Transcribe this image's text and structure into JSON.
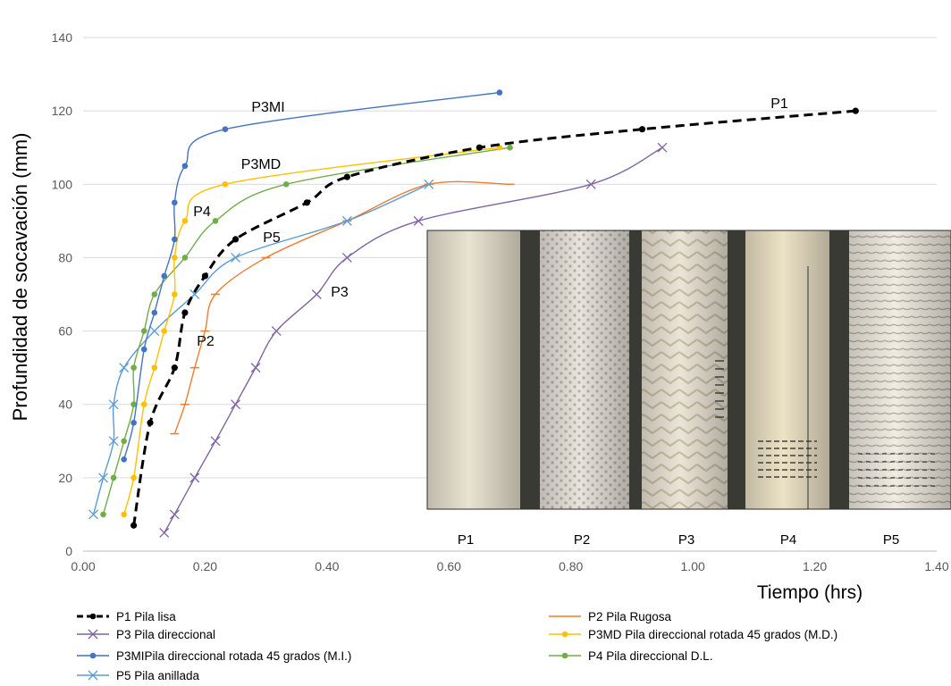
{
  "chart_data": {
    "type": "line",
    "title": "",
    "xlabel": "Tiempo (hrs)",
    "ylabel": "Profundidad de socavación (mm)",
    "xlim": [
      0,
      1.4
    ],
    "ylim": [
      0,
      140
    ],
    "x_ticks": [
      "0.00",
      "0.20",
      "0.40",
      "0.60",
      "0.80",
      "1.00",
      "1.20",
      "1.40"
    ],
    "y_ticks": [
      "0",
      "20",
      "40",
      "60",
      "80",
      "100",
      "120",
      "140"
    ],
    "grid": "horizontal",
    "legend_position": "bottom",
    "series": [
      {
        "key": "P1",
        "name": "P1 Pila lisa",
        "color": "#000000",
        "dash": "dashed",
        "marker": "dot",
        "label": "P1",
        "points": [
          [
            0.083,
            7
          ],
          [
            0.11,
            35
          ],
          [
            0.15,
            50
          ],
          [
            0.167,
            65
          ],
          [
            0.2,
            75
          ],
          [
            0.25,
            85
          ],
          [
            0.367,
            95
          ],
          [
            0.433,
            102
          ],
          [
            0.65,
            110
          ],
          [
            0.917,
            115
          ],
          [
            1.267,
            120
          ]
        ]
      },
      {
        "key": "P2",
        "name": "P2 Pila Rugosa",
        "color": "#ED7D31",
        "dash": "solid",
        "marker": "dash",
        "label": "P2",
        "points": [
          [
            0.15,
            32
          ],
          [
            0.167,
            40
          ],
          [
            0.183,
            50
          ],
          [
            0.2,
            60
          ],
          [
            0.217,
            70
          ],
          [
            0.3,
            80
          ],
          [
            0.433,
            90
          ],
          [
            0.567,
            100
          ],
          [
            0.7,
            100
          ]
        ]
      },
      {
        "key": "P3",
        "name": "P3 Pila direccional",
        "color": "#8064A2",
        "dash": "solid",
        "marker": "x",
        "label": "P3",
        "points": [
          [
            0.133,
            5
          ],
          [
            0.15,
            10
          ],
          [
            0.183,
            20
          ],
          [
            0.217,
            30
          ],
          [
            0.25,
            40
          ],
          [
            0.283,
            50
          ],
          [
            0.317,
            60
          ],
          [
            0.383,
            70
          ],
          [
            0.433,
            80
          ],
          [
            0.55,
            90
          ],
          [
            0.833,
            100
          ],
          [
            0.95,
            110
          ]
        ]
      },
      {
        "key": "P3MD",
        "name": "P3MD Pila direccional rotada 45 grados (M.D.)",
        "color": "#FFC000",
        "dash": "solid",
        "marker": "dot",
        "label": "P3MD",
        "points": [
          [
            0.067,
            10
          ],
          [
            0.083,
            20
          ],
          [
            0.1,
            40
          ],
          [
            0.117,
            50
          ],
          [
            0.133,
            60
          ],
          [
            0.15,
            70
          ],
          [
            0.15,
            80
          ],
          [
            0.167,
            90
          ],
          [
            0.233,
            100
          ],
          [
            0.683,
            110
          ]
        ]
      },
      {
        "key": "P3MI",
        "name": "P3MIPila direccional rotada 45 grados (M.I.)",
        "color": "#4472C4",
        "dash": "solid",
        "marker": "dot",
        "label": "P3MI",
        "points": [
          [
            0.067,
            25
          ],
          [
            0.083,
            35
          ],
          [
            0.1,
            55
          ],
          [
            0.117,
            65
          ],
          [
            0.133,
            75
          ],
          [
            0.15,
            85
          ],
          [
            0.15,
            95
          ],
          [
            0.167,
            105
          ],
          [
            0.233,
            115
          ],
          [
            0.683,
            125
          ]
        ]
      },
      {
        "key": "P4",
        "name": "P4 Pila direccional D.L.",
        "color": "#70AD47",
        "dash": "solid",
        "marker": "dot",
        "label": "P4",
        "points": [
          [
            0.033,
            10
          ],
          [
            0.05,
            20
          ],
          [
            0.067,
            30
          ],
          [
            0.083,
            40
          ],
          [
            0.083,
            50
          ],
          [
            0.1,
            60
          ],
          [
            0.117,
            70
          ],
          [
            0.167,
            80
          ],
          [
            0.217,
            90
          ],
          [
            0.333,
            100
          ],
          [
            0.7,
            110
          ]
        ]
      },
      {
        "key": "P5",
        "name": "P5 Pila anillada",
        "color": "#5B9BD5",
        "dash": "solid",
        "marker": "x",
        "label": "P5",
        "points": [
          [
            0.017,
            10
          ],
          [
            0.033,
            20
          ],
          [
            0.05,
            30
          ],
          [
            0.05,
            40
          ],
          [
            0.067,
            50
          ],
          [
            0.117,
            60
          ],
          [
            0.183,
            70
          ],
          [
            0.25,
            80
          ],
          [
            0.433,
            90
          ],
          [
            0.567,
            100
          ]
        ]
      }
    ]
  },
  "photo": {
    "labels": [
      "P1",
      "P2",
      "P3",
      "P4",
      "P5"
    ],
    "columns": [
      {
        "key": "P1",
        "texture": "smooth"
      },
      {
        "key": "P2",
        "texture": "rough"
      },
      {
        "key": "P3",
        "texture": "chevron"
      },
      {
        "key": "P4",
        "texture": "smooth-marked"
      },
      {
        "key": "P5",
        "texture": "rings"
      }
    ]
  }
}
